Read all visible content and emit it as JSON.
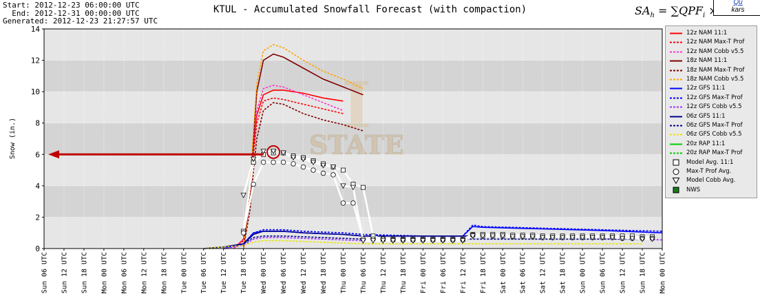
{
  "header": {
    "start": "Start: 2012-12-23 06:00:00 UTC",
    "end": "  End: 2012-12-31 00:00:00 UTC",
    "generated": "Generated: 2012-12-23 21:27:57 UTC"
  },
  "title": "KTUL - Accumulated Snowfall Forecast (with compaction)",
  "corner": {
    "line1": "Qu",
    "line2": "kars"
  },
  "chart_data": {
    "type": "line",
    "title": "KTUL - Accumulated Snowfall Forecast (with compaction)",
    "ylabel": "Snow (in.)",
    "xlabel": "",
    "ylim": [
      0,
      14
    ],
    "xlim": [
      0,
      186
    ],
    "grid": true,
    "legend_position": "right",
    "x_tick_hours": [
      0,
      6,
      12,
      18,
      24,
      30,
      36,
      42,
      48,
      54,
      60,
      66,
      72,
      78,
      84,
      90,
      96,
      102,
      108,
      114,
      120,
      126,
      132,
      138,
      144,
      150,
      156,
      162,
      168,
      174,
      180,
      186
    ],
    "x_tick_labels": [
      "Sun 06 UTC",
      "Sun 12 UTC",
      "Sun 18 UTC",
      "Mon 00 UTC",
      "Mon 06 UTC",
      "Mon 12 UTC",
      "Mon 18 UTC",
      "Tue 00 UTC",
      "Tue 06 UTC",
      "Tue 12 UTC",
      "Tue 18 UTC",
      "Wed 00 UTC",
      "Wed 06 UTC",
      "Wed 12 UTC",
      "Wed 18 UTC",
      "Thu 00 UTC",
      "Thu 06 UTC",
      "Thu 12 UTC",
      "Thu 18 UTC",
      "Fri 00 UTC",
      "Fri 06 UTC",
      "Fri 12 UTC",
      "Fri 18 UTC",
      "Sat 00 UTC",
      "Sat 06 UTC",
      "Sat 12 UTC",
      "Sat 18 UTC",
      "Sun 00 UTC",
      "Sun 06 UTC",
      "Sun 12 UTC",
      "Sun 18 UTC",
      "Mon 00 UTC"
    ],
    "y_ticks": [
      0,
      2,
      4,
      6,
      8,
      10,
      12,
      14
    ],
    "series": [
      {
        "name": "12z NAM 11:1",
        "color": "#ff0000",
        "dash": "solid",
        "x": [
          57,
          60,
          62,
          63,
          64,
          66,
          69,
          72,
          78,
          84,
          90
        ],
        "y": [
          0,
          0.6,
          3.5,
          6.5,
          8.5,
          9.8,
          10.1,
          10.1,
          9.9,
          9.6,
          9.4
        ]
      },
      {
        "name": "12z NAM Max-T Prof",
        "color": "#ff0000",
        "dash": "dashed",
        "x": [
          57,
          60,
          62,
          63,
          64,
          66,
          69,
          72,
          78,
          84,
          90
        ],
        "y": [
          0,
          0.5,
          3,
          6,
          8,
          9.4,
          9.6,
          9.5,
          9.2,
          8.9,
          8.6
        ]
      },
      {
        "name": "12z NAM Cobb v5.5",
        "color": "#ff33cc",
        "dash": "dashed",
        "x": [
          57,
          60,
          62,
          63,
          64,
          66,
          69,
          72,
          78,
          84,
          90
        ],
        "y": [
          0,
          0.6,
          3.6,
          6.8,
          8.8,
          10.2,
          10.4,
          10.3,
          9.8,
          9.3,
          8.8
        ]
      },
      {
        "name": "18z NAM 11:1",
        "color": "#800000",
        "dash": "solid",
        "x": [
          60,
          62,
          63,
          64,
          66,
          69,
          72,
          78,
          84,
          90,
          96
        ],
        "y": [
          0,
          3.5,
          7,
          10,
          12,
          12.4,
          12.2,
          11.5,
          10.8,
          10.3,
          9.8
        ]
      },
      {
        "name": "18z NAM Max-T Prof",
        "color": "#800000",
        "dash": "dashed",
        "x": [
          60,
          62,
          63,
          64,
          66,
          69,
          72,
          78,
          84,
          90,
          96
        ],
        "y": [
          0,
          2.5,
          5,
          7,
          8.8,
          9.3,
          9.2,
          8.6,
          8.2,
          7.9,
          7.5
        ]
      },
      {
        "name": "18z NAM Cobb v5.5",
        "color": "#ffa500",
        "dash": "dashed",
        "x": [
          60,
          62,
          63,
          64,
          66,
          69,
          72,
          78,
          84,
          90,
          96
        ],
        "y": [
          0,
          3.8,
          7.5,
          10.5,
          12.6,
          13,
          12.8,
          12,
          11.3,
          10.8,
          10.2
        ]
      },
      {
        "name": "12z GFS 11:1",
        "color": "#0000ff",
        "dash": "solid",
        "x": [
          54,
          60,
          63,
          66,
          72,
          78,
          84,
          90,
          96,
          114,
          120,
          126,
          129,
          132,
          150,
          168,
          186
        ],
        "y": [
          0,
          0.3,
          1,
          1.1,
          1.1,
          1,
          0.95,
          0.9,
          0.8,
          0.8,
          0.8,
          0.8,
          1.4,
          1.35,
          1.25,
          1.15,
          1
        ]
      },
      {
        "name": "12z GFS Max-T Prof",
        "color": "#0000ff",
        "dash": "dashed",
        "x": [
          54,
          60,
          63,
          66,
          72,
          78,
          84,
          90,
          96,
          114,
          120,
          126,
          129,
          132,
          150,
          168,
          186
        ],
        "y": [
          0,
          0.3,
          1,
          1.2,
          1.2,
          1.1,
          1.05,
          1,
          0.9,
          0.8,
          0.8,
          0.8,
          1.5,
          1.4,
          1.3,
          1.2,
          1.1
        ]
      },
      {
        "name": "12z GFS Cobb v5.5",
        "color": "#9933ff",
        "dash": "dashed",
        "x": [
          54,
          60,
          63,
          66,
          72,
          78,
          84,
          90,
          96,
          114,
          120,
          126,
          129,
          132,
          150,
          168,
          186
        ],
        "y": [
          0,
          0.2,
          0.6,
          0.7,
          0.7,
          0.65,
          0.6,
          0.55,
          0.5,
          0.5,
          0.5,
          0.5,
          0.9,
          0.85,
          0.75,
          0.65,
          0.55
        ]
      },
      {
        "name": "06z GFS 11:1",
        "color": "#00008b",
        "dash": "solid",
        "x": [
          48,
          54,
          60,
          63,
          66,
          72,
          78,
          84,
          90,
          96,
          180
        ],
        "y": [
          0,
          0.1,
          0.3,
          0.9,
          1.1,
          1.1,
          1,
          0.95,
          0.9,
          0.8,
          0.8
        ]
      },
      {
        "name": "06z GFS Max-T Prof",
        "color": "#00008b",
        "dash": "dashed",
        "x": [
          48,
          54,
          60,
          63,
          66,
          72,
          78,
          84,
          90,
          96,
          180
        ],
        "y": [
          0,
          0.1,
          0.3,
          0.7,
          0.8,
          0.8,
          0.75,
          0.7,
          0.65,
          0.6,
          0.6
        ]
      },
      {
        "name": "06z GFS Cobb v5.5",
        "color": "#e6e600",
        "dash": "dashed",
        "x": [
          48,
          54,
          60,
          63,
          66,
          72,
          78,
          84,
          90,
          96,
          180
        ],
        "y": [
          0,
          0.1,
          0.2,
          0.4,
          0.5,
          0.5,
          0.45,
          0.4,
          0.35,
          0.3,
          0.3
        ]
      },
      {
        "name": "20z RAP 11:1",
        "color": "#00cc00",
        "dash": "solid",
        "x": [],
        "y": []
      },
      {
        "name": "20z RAP Max-T Prof",
        "color": "#00cc00",
        "dash": "dashed",
        "x": [],
        "y": []
      }
    ],
    "averages": [
      {
        "name": "Model Avg. 11:1",
        "marker": "square",
        "x": [
          60,
          63,
          66,
          69,
          72,
          75,
          78,
          81,
          84,
          87,
          90,
          93,
          96,
          99,
          102,
          105,
          108,
          111,
          114,
          117,
          120,
          123,
          126,
          129,
          132,
          135,
          138,
          141,
          144,
          147,
          150,
          153,
          156,
          159,
          162,
          165,
          168,
          171,
          174,
          177,
          180,
          183
        ],
        "y": [
          1.1,
          5.5,
          6,
          6.1,
          6.1,
          5.9,
          5.8,
          5.6,
          5.4,
          5.2,
          5,
          4.1,
          3.9,
          0.8,
          0.6,
          0.6,
          0.6,
          0.6,
          0.6,
          0.6,
          0.6,
          0.6,
          0.6,
          0.9,
          0.9,
          0.9,
          0.9,
          0.85,
          0.85,
          0.85,
          0.8,
          0.8,
          0.8,
          0.8,
          0.8,
          0.8,
          0.8,
          0.8,
          0.8,
          0.8,
          0.75,
          0.75
        ]
      },
      {
        "name": "Max-T Prof Avg.",
        "marker": "circle",
        "x": [
          60,
          63,
          66,
          69,
          72,
          75,
          78,
          81,
          84,
          87,
          90,
          93,
          96,
          99,
          102,
          105,
          108,
          111,
          114,
          117,
          120,
          123,
          126,
          129,
          132,
          135,
          138,
          141,
          144,
          147,
          150,
          153,
          156,
          159,
          162,
          165,
          168,
          171,
          174,
          177,
          180,
          183
        ],
        "y": [
          1,
          4.1,
          5.5,
          5.5,
          5.5,
          5.4,
          5.2,
          5,
          4.8,
          4.7,
          2.9,
          2.9,
          0.6,
          0.6,
          0.6,
          0.55,
          0.55,
          0.55,
          0.55,
          0.55,
          0.55,
          0.55,
          0.55,
          0.85,
          0.8,
          0.8,
          0.8,
          0.75,
          0.75,
          0.75,
          0.7,
          0.7,
          0.7,
          0.7,
          0.7,
          0.7,
          0.7,
          0.7,
          0.65,
          0.65,
          0.65,
          0.65
        ]
      },
      {
        "name": "Model Cobb Avg.",
        "marker": "triangle",
        "x": [
          60,
          63,
          66,
          69,
          72,
          75,
          78,
          81,
          84,
          87,
          90,
          93,
          96,
          99,
          102,
          105,
          108,
          111,
          114,
          117,
          120,
          123,
          126,
          129,
          132,
          135,
          138,
          141,
          144,
          147,
          150,
          153,
          156,
          159,
          162,
          165,
          168,
          171,
          174,
          177,
          180,
          183
        ],
        "y": [
          3.4,
          5.7,
          6.2,
          6.2,
          6.1,
          5.8,
          5.7,
          5.5,
          5.3,
          5.2,
          4,
          3.9,
          0.5,
          0.5,
          0.5,
          0.5,
          0.5,
          0.5,
          0.5,
          0.5,
          0.5,
          0.5,
          0.5,
          0.8,
          0.8,
          0.8,
          0.8,
          0.75,
          0.75,
          0.75,
          0.7,
          0.7,
          0.7,
          0.7,
          0.7,
          0.7,
          0.7,
          0.7,
          0.65,
          0.65,
          0.6,
          0.6
        ]
      },
      {
        "name": "NWS",
        "marker": "filled-square",
        "x": [],
        "y": []
      }
    ],
    "annotations": [
      {
        "type": "arrow",
        "color": "#c00000",
        "from": [
          66,
          6
        ],
        "to": [
          0,
          6
        ]
      },
      {
        "type": "circle",
        "color": "#c00000",
        "at": [
          69,
          6.15
        ]
      }
    ]
  },
  "legend": {
    "items": [
      {
        "label": "12z NAM 11:1",
        "color": "#ff0000",
        "style": "solid"
      },
      {
        "label": "12z NAM Max-T Prof",
        "color": "#ff0000",
        "style": "dashed"
      },
      {
        "label": "12z NAM Cobb v5.5",
        "color": "#ff33cc",
        "style": "dashed"
      },
      {
        "label": "18z NAM 11:1",
        "color": "#800000",
        "style": "solid"
      },
      {
        "label": "18z NAM Max-T Prof",
        "color": "#800000",
        "style": "dashed"
      },
      {
        "label": "18z NAM Cobb v5.5",
        "color": "#ffa500",
        "style": "dashed"
      },
      {
        "label": "12z GFS 11:1",
        "color": "#0000ff",
        "style": "solid"
      },
      {
        "label": "12z GFS Max-T Prof",
        "color": "#0000ff",
        "style": "dashed"
      },
      {
        "label": "12z GFS Cobb v5.5",
        "color": "#9933ff",
        "style": "dashed"
      },
      {
        "label": "06z GFS 11:1",
        "color": "#00008b",
        "style": "solid"
      },
      {
        "label": "06z GFS Max-T Prof",
        "color": "#00008b",
        "style": "dashed"
      },
      {
        "label": "06z GFS Cobb v5.5",
        "color": "#e6e600",
        "style": "dashed"
      },
      {
        "label": "20z RAP 11:1",
        "color": "#00cc00",
        "style": "solid"
      },
      {
        "label": "20z RAP Max-T Prof",
        "color": "#00cc00",
        "style": "dashed"
      },
      {
        "label": "Model Avg. 11:1",
        "color": "#000000",
        "style": "square"
      },
      {
        "label": "Max-T Prof Avg.",
        "color": "#000000",
        "style": "circle"
      },
      {
        "label": "Model Cobb Avg.",
        "color": "#000000",
        "style": "triangle"
      },
      {
        "label": "NWS",
        "color": "#1a7a1a",
        "style": "filled-square"
      }
    ]
  }
}
